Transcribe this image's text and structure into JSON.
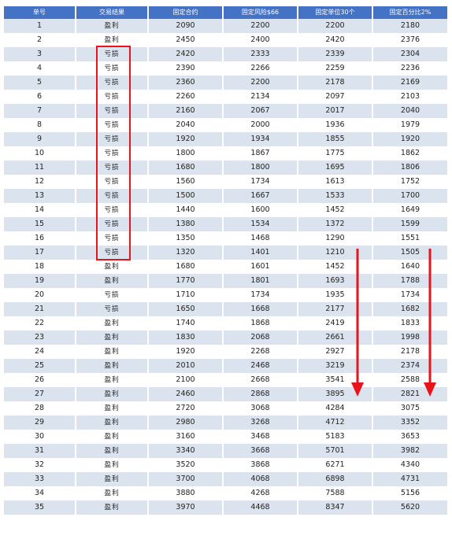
{
  "table": {
    "headers": [
      "单号",
      "交易结果",
      "固定合约",
      "固定风险$66",
      "固定单位30个",
      "固定百分比2%"
    ],
    "rows": [
      [
        "1",
        "盈利",
        "2090",
        "2200",
        "2200",
        "2180"
      ],
      [
        "2",
        "盈利",
        "2450",
        "2400",
        "2420",
        "2376"
      ],
      [
        "3",
        "亏损",
        "2420",
        "2333",
        "2339",
        "2304"
      ],
      [
        "4",
        "亏损",
        "2390",
        "2266",
        "2259",
        "2236"
      ],
      [
        "5",
        "亏损",
        "2360",
        "2200",
        "2178",
        "2169"
      ],
      [
        "6",
        "亏损",
        "2260",
        "2134",
        "2097",
        "2103"
      ],
      [
        "7",
        "亏损",
        "2160",
        "2067",
        "2017",
        "2040"
      ],
      [
        "8",
        "亏损",
        "2040",
        "2000",
        "1936",
        "1979"
      ],
      [
        "9",
        "亏损",
        "1920",
        "1934",
        "1855",
        "1920"
      ],
      [
        "10",
        "亏损",
        "1800",
        "1867",
        "1775",
        "1862"
      ],
      [
        "11",
        "亏损",
        "1680",
        "1800",
        "1695",
        "1806"
      ],
      [
        "12",
        "亏损",
        "1560",
        "1734",
        "1613",
        "1752"
      ],
      [
        "13",
        "亏损",
        "1500",
        "1667",
        "1533",
        "1700"
      ],
      [
        "14",
        "亏损",
        "1440",
        "1600",
        "1452",
        "1649"
      ],
      [
        "15",
        "亏损",
        "1380",
        "1534",
        "1372",
        "1599"
      ],
      [
        "16",
        "亏损",
        "1350",
        "1468",
        "1290",
        "1551"
      ],
      [
        "17",
        "亏损",
        "1320",
        "1401",
        "1210",
        "1505"
      ],
      [
        "18",
        "盈利",
        "1680",
        "1601",
        "1452",
        "1640"
      ],
      [
        "19",
        "盈利",
        "1770",
        "1801",
        "1693",
        "1788"
      ],
      [
        "20",
        "亏损",
        "1710",
        "1734",
        "1935",
        "1734"
      ],
      [
        "21",
        "亏损",
        "1650",
        "1668",
        "2177",
        "1682"
      ],
      [
        "22",
        "盈利",
        "1740",
        "1868",
        "2419",
        "1833"
      ],
      [
        "23",
        "盈利",
        "1830",
        "2068",
        "2661",
        "1998"
      ],
      [
        "24",
        "盈利",
        "1920",
        "2268",
        "2927",
        "2178"
      ],
      [
        "25",
        "盈利",
        "2010",
        "2468",
        "3219",
        "2374"
      ],
      [
        "26",
        "盈利",
        "2100",
        "2668",
        "3541",
        "2588"
      ],
      [
        "27",
        "盈利",
        "2460",
        "2868",
        "3895",
        "2821"
      ],
      [
        "28",
        "盈利",
        "2720",
        "3068",
        "4284",
        "3075"
      ],
      [
        "29",
        "盈利",
        "2980",
        "3268",
        "4712",
        "3352"
      ],
      [
        "30",
        "盈利",
        "3160",
        "3468",
        "5183",
        "3653"
      ],
      [
        "31",
        "盈利",
        "3340",
        "3668",
        "5701",
        "3982"
      ],
      [
        "32",
        "盈利",
        "3520",
        "3868",
        "6271",
        "4340"
      ],
      [
        "33",
        "盈利",
        "3700",
        "4068",
        "6898",
        "4731"
      ],
      [
        "34",
        "盈利",
        "3880",
        "4268",
        "7588",
        "5156"
      ],
      [
        "35",
        "盈利",
        "3970",
        "4468",
        "8347",
        "5620"
      ]
    ]
  },
  "annotations": {
    "highlight_color": "#e8141b",
    "highlight_rows": [
      3,
      17
    ],
    "arrow_column_indices": [
      4,
      5
    ]
  }
}
